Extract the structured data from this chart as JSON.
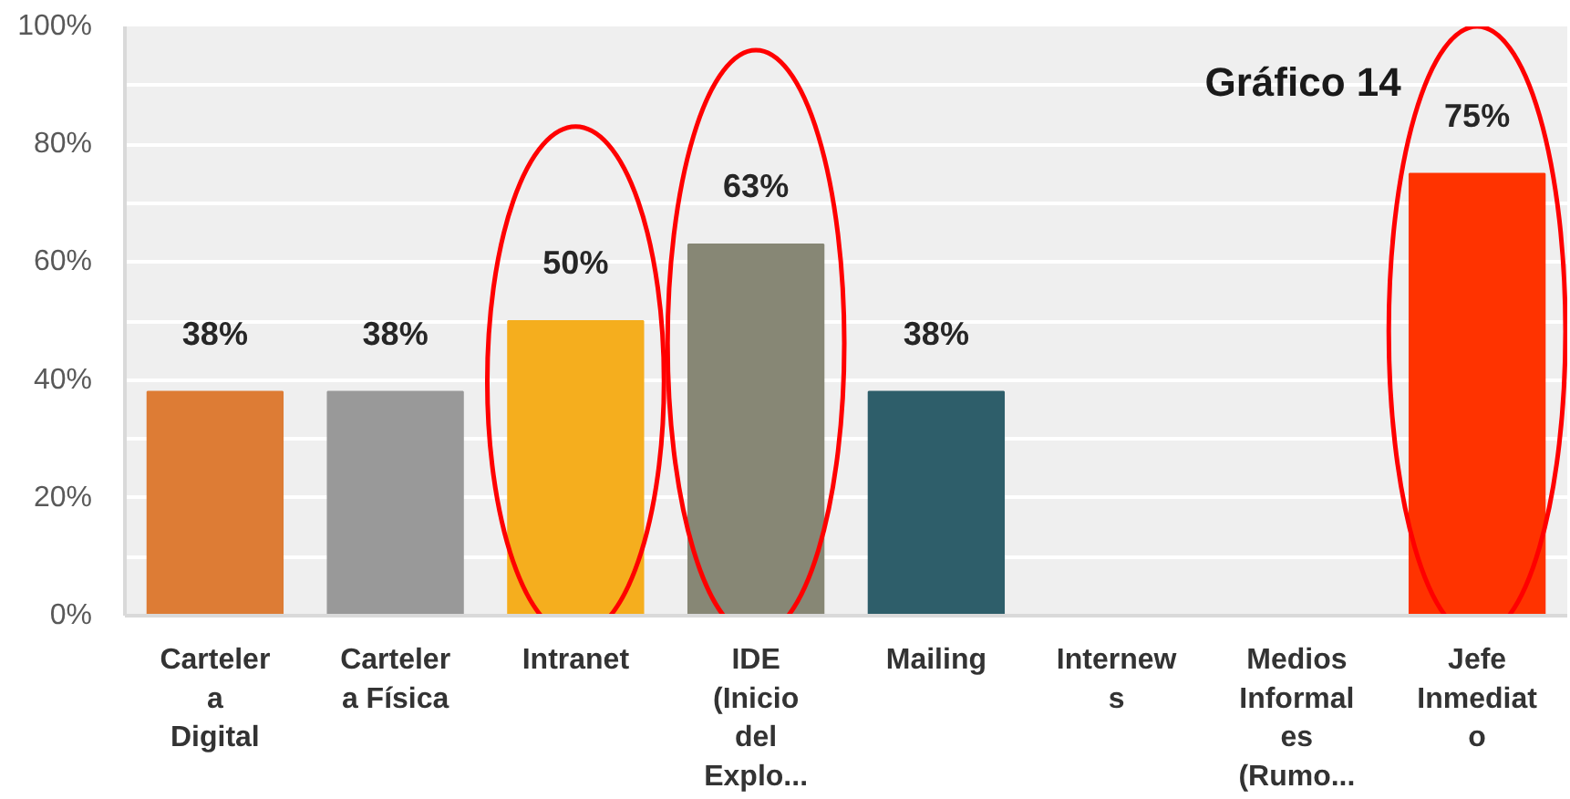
{
  "chart_data": {
    "type": "bar",
    "categories": [
      "Cartelera Digital",
      "Cartelera Física",
      "Intranet",
      "IDE (Inicio del Explo...",
      "Mailing",
      "Internews",
      "Medios Informales (Rumo...",
      "Jefe Inmediato"
    ],
    "values": [
      38,
      38,
      50,
      63,
      38,
      null,
      null,
      75
    ],
    "colors": [
      "#dd7c35",
      "#999999",
      "#f5ae1e",
      "#878775",
      "#2e5e6a",
      null,
      null,
      "#ff3300"
    ],
    "value_labels": [
      "38%",
      "38%",
      "50%",
      "63%",
      "38%",
      null,
      null,
      "75%"
    ],
    "ylim": [
      0,
      100
    ],
    "yticks": [
      {
        "value": 0,
        "label": "0%"
      },
      {
        "value": 10,
        "label": null
      },
      {
        "value": 20,
        "label": "20%"
      },
      {
        "value": 30,
        "label": null
      },
      {
        "value": 40,
        "label": "40%"
      },
      {
        "value": 50,
        "label": null
      },
      {
        "value": 60,
        "label": "60%"
      },
      {
        "value": 70,
        "label": null
      },
      {
        "value": 80,
        "label": "80%"
      },
      {
        "value": 90,
        "label": null
      },
      {
        "value": 100,
        "label": "100%"
      }
    ],
    "grid": "y",
    "annotations": [
      "Gráfico 14"
    ]
  }
}
